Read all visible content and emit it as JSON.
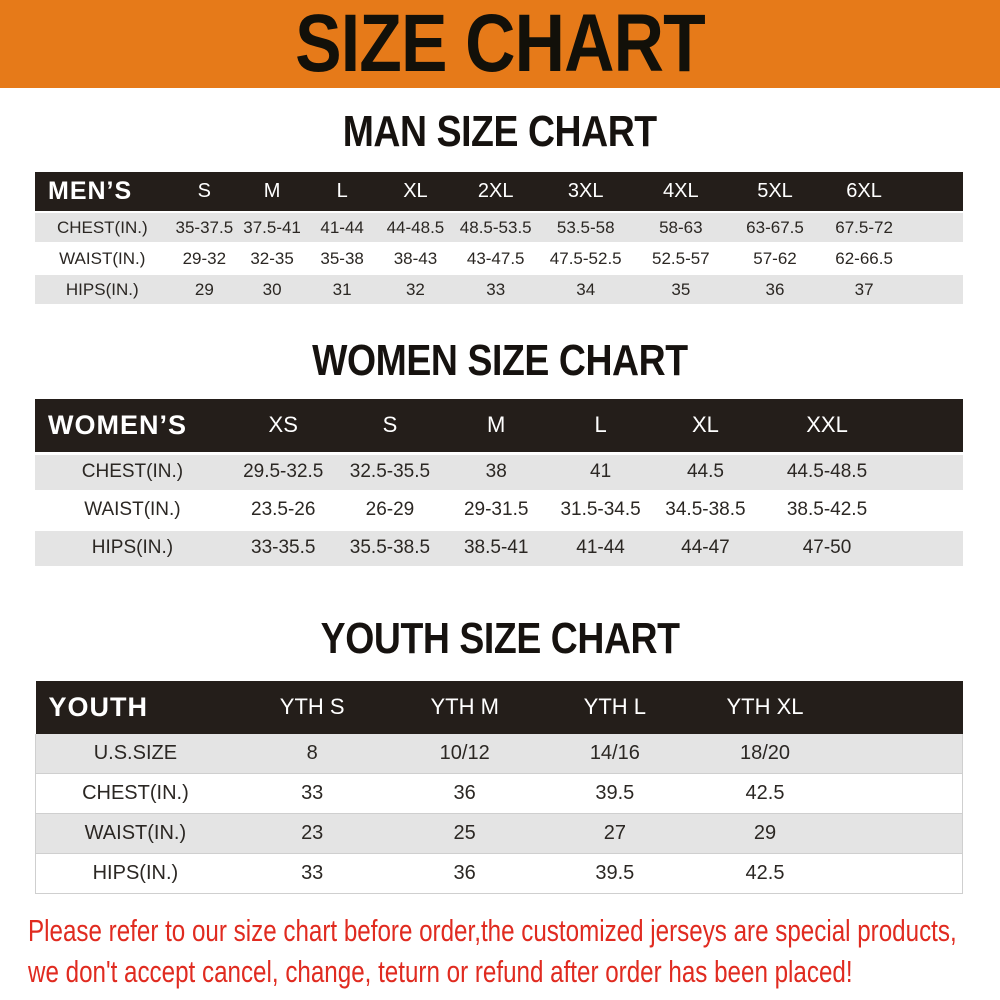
{
  "banner": {
    "title": "SIZE CHART"
  },
  "colors": {
    "accent_orange": "#e67a19",
    "table_header_black": "#241e1a",
    "row_stripe_gray": "#e4e4e4",
    "note_red": "#e02b20"
  },
  "chart_data": [
    {
      "type": "table",
      "title": "MAN SIZE CHART",
      "header": [
        "MEN’S",
        "S",
        "M",
        "L",
        "XL",
        "2XL",
        "3XL",
        "4XL",
        "5XL",
        "6XL"
      ],
      "rows": [
        [
          "CHEST(IN.)",
          "35-37.5",
          "37.5-41",
          "41-44",
          "44-48.5",
          "48.5-53.5",
          "53.5-58",
          "58-63",
          "63-67.5",
          "67.5-72"
        ],
        [
          "WAIST(IN.)",
          "29-32",
          "32-35",
          "35-38",
          "38-43",
          "43-47.5",
          "47.5-52.5",
          "52.5-57",
          "57-62",
          "62-66.5"
        ],
        [
          "HIPS(IN.)",
          "29",
          "30",
          "31",
          "32",
          "33",
          "34",
          "35",
          "36",
          "37"
        ]
      ]
    },
    {
      "type": "table",
      "title": "WOMEN SIZE CHART",
      "header": [
        "WOMEN’S",
        "XS",
        "S",
        "M",
        "L",
        "XL",
        "XXL"
      ],
      "rows": [
        [
          "CHEST(IN.)",
          "29.5-32.5",
          "32.5-35.5",
          "38",
          "41",
          "44.5",
          "44.5-48.5"
        ],
        [
          "WAIST(IN.)",
          "23.5-26",
          "26-29",
          "29-31.5",
          "31.5-34.5",
          "34.5-38.5",
          "38.5-42.5"
        ],
        [
          "HIPS(IN.)",
          "33-35.5",
          "35.5-38.5",
          "38.5-41",
          "41-44",
          "44-47",
          "47-50"
        ]
      ]
    },
    {
      "type": "table",
      "title": "YOUTH SIZE CHART",
      "header": [
        "YOUTH",
        "YTH S",
        "YTH M",
        "YTH L",
        "YTH XL"
      ],
      "rows": [
        [
          "U.S.SIZE",
          "8",
          "10/12",
          "14/16",
          "18/20"
        ],
        [
          "CHEST(IN.)",
          "33",
          "36",
          "39.5",
          "42.5"
        ],
        [
          "WAIST(IN.)",
          "23",
          "25",
          "27",
          "29"
        ],
        [
          "HIPS(IN.)",
          "33",
          "36",
          "39.5",
          "42.5"
        ]
      ]
    }
  ],
  "note": {
    "line1": "Please refer to our size chart before order,the customized jerseys are special products,",
    "line2": "we don't accept cancel, change, teturn or refund after order has been placed!"
  }
}
